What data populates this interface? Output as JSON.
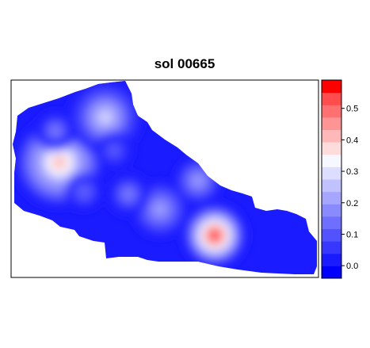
{
  "chart_data": {
    "type": "heatmap",
    "title": "sol 00665",
    "xlabel": "",
    "ylabel": "",
    "colorbar": {
      "min": -0.04,
      "max": 0.59,
      "step": 0.04,
      "ticks": [
        0.0,
        0.1,
        0.2,
        0.3,
        0.4,
        0.5
      ],
      "tick_labels": [
        "0.0",
        "0.1",
        "0.2",
        "0.3",
        "0.4",
        "0.5"
      ],
      "colors": [
        "#0000ff",
        "#1b1bff",
        "#3737ff",
        "#5252ff",
        "#6e6eff",
        "#8a8aff",
        "#a6a6ff",
        "#c1c1ff",
        "#ddddff",
        "#f7f7ff",
        "#ffdcdc",
        "#ffb8b8",
        "#ff9494",
        "#ff7070",
        "#ff4c4c",
        "#ff0000"
      ]
    },
    "background_value": 0.0,
    "hotspots": [
      {
        "name": "",
        "value": 0.58,
        "spread": 0.1
      },
      {
        "name": "",
        "value": 0.4,
        "spread": 0.14
      },
      {
        "name": "",
        "value": 0.28,
        "spread": 0.12
      },
      {
        "name": "",
        "value": 0.22,
        "spread": 0.1
      },
      {
        "name": "",
        "value": 0.2,
        "spread": 0.1
      },
      {
        "name": "",
        "value": 0.18,
        "spread": 0.08
      },
      {
        "name": "",
        "value": 0.16,
        "spread": 0.08
      },
      {
        "name": "",
        "value": 0.14,
        "spread": 0.08
      },
      {
        "name": "",
        "value": 0.12,
        "spread": 0.08
      }
    ],
    "legend_position": "right"
  }
}
